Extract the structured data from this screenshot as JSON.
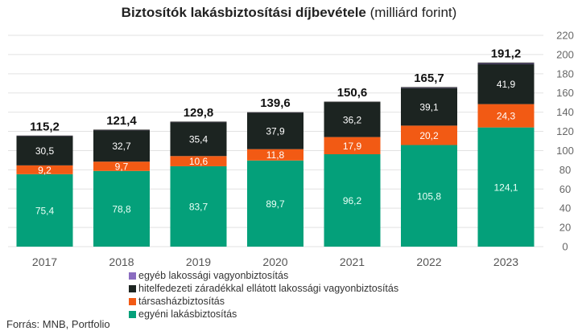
{
  "title_bold": "Biztosítók lakásbiztosítási díjbevétele",
  "title_unit": "(milliárd forint)",
  "source": "Forrás: MNB, Portfolio",
  "colors": {
    "egyeb": "#8a6cc0",
    "hitel": "#1c2421",
    "tarsashaz": "#f25a14",
    "egyeni": "#04a07a",
    "grid": "#e2e2e2",
    "axis_text": "#666666"
  },
  "chart_data": {
    "type": "bar",
    "stacked": true,
    "title": "Biztosítók lakásbiztosítási díjbevétele (milliárd forint)",
    "categories": [
      "2017",
      "2018",
      "2019",
      "2020",
      "2021",
      "2022",
      "2023"
    ],
    "series": [
      {
        "key": "egyeni",
        "name": "egyéni lakásbiztosítás",
        "values": [
          75.4,
          78.8,
          83.7,
          89.7,
          96.2,
          105.8,
          124.1
        ],
        "labels": [
          "75,4",
          "78,8",
          "83,7",
          "89,7",
          "96,2",
          "105,8",
          "124,1"
        ]
      },
      {
        "key": "tarsashaz",
        "name": "társasházbiztosítás",
        "values": [
          9.2,
          9.7,
          10.6,
          11.8,
          17.9,
          20.2,
          24.3
        ],
        "labels": [
          "9,2",
          "9,7",
          "10,6",
          "11,8",
          "17,9",
          "20,2",
          "24,3"
        ]
      },
      {
        "key": "hitel",
        "name": "hitelfedezeti záradékkal ellátott lakossági vagyonbiztosítás",
        "values": [
          30.5,
          32.7,
          35.4,
          37.9,
          36.2,
          39.1,
          41.9
        ],
        "labels": [
          "30,5",
          "32,7",
          "35,4",
          "37,9",
          "36,2",
          "39,1",
          "41,9"
        ]
      },
      {
        "key": "egyeb",
        "name": "egyéb lakossági vagyonbiztosítás",
        "values": [
          0.1,
          0.2,
          0.1,
          0.2,
          0.3,
          0.6,
          0.9
        ],
        "labels": []
      }
    ],
    "totals": [
      115.2,
      121.4,
      129.8,
      139.6,
      150.6,
      165.7,
      191.2
    ],
    "total_labels": [
      "115,2",
      "121,4",
      "129,8",
      "139,6",
      "150,6",
      "165,7",
      "191,2"
    ],
    "ylim": [
      0,
      220
    ],
    "yticks": [
      "0",
      "20",
      "40",
      "60",
      "80",
      "100",
      "120",
      "140",
      "160",
      "180",
      "200",
      "220"
    ],
    "yaxis_side": "right",
    "grid": true,
    "legend_order": [
      "egyeb",
      "hitel",
      "tarsashaz",
      "egyeni"
    ],
    "legend_position": "bottom"
  }
}
